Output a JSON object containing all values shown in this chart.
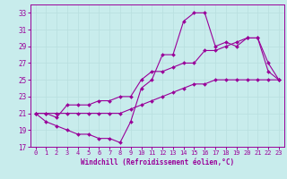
{
  "xlabel": "Windchill (Refroidissement éolien,°C)",
  "bg_color": "#c8ecec",
  "line_color": "#990099",
  "grid_color": "#b8dede",
  "ylim": [
    17,
    34
  ],
  "xlim": [
    -0.5,
    23.5
  ],
  "yticks": [
    17,
    19,
    21,
    23,
    25,
    27,
    29,
    31,
    33
  ],
  "xticks": [
    0,
    1,
    2,
    3,
    4,
    5,
    6,
    7,
    8,
    9,
    10,
    11,
    12,
    13,
    14,
    15,
    16,
    17,
    18,
    19,
    20,
    21,
    22,
    23
  ],
  "line1_x": [
    0,
    1,
    2,
    3,
    4,
    5,
    6,
    7,
    8,
    9,
    10,
    11,
    12,
    13,
    14,
    15,
    16,
    17,
    18,
    19,
    20,
    21,
    22,
    23
  ],
  "line1_y": [
    21,
    20,
    19.5,
    19,
    18.5,
    18.5,
    18,
    18,
    17.5,
    20,
    24,
    25,
    28,
    28,
    32,
    33,
    33,
    29,
    29.5,
    29,
    30,
    30,
    26,
    25
  ],
  "line2_x": [
    0,
    1,
    2,
    3,
    4,
    5,
    6,
    7,
    8,
    9,
    10,
    11,
    12,
    13,
    14,
    15,
    16,
    17,
    18,
    19,
    20,
    21,
    22,
    23
  ],
  "line2_y": [
    21,
    21,
    20.5,
    22,
    22,
    22,
    22.5,
    22.5,
    23,
    23,
    25,
    26,
    26,
    26.5,
    27,
    27,
    28.5,
    28.5,
    29,
    29.5,
    30,
    30,
    27,
    25
  ],
  "line3_x": [
    0,
    1,
    2,
    3,
    4,
    5,
    6,
    7,
    8,
    9,
    10,
    11,
    12,
    13,
    14,
    15,
    16,
    17,
    18,
    19,
    20,
    21,
    22,
    23
  ],
  "line3_y": [
    21,
    21,
    21,
    21,
    21,
    21,
    21,
    21,
    21,
    21.5,
    22,
    22.5,
    23,
    23.5,
    24,
    24.5,
    24.5,
    25,
    25,
    25,
    25,
    25,
    25,
    25
  ]
}
